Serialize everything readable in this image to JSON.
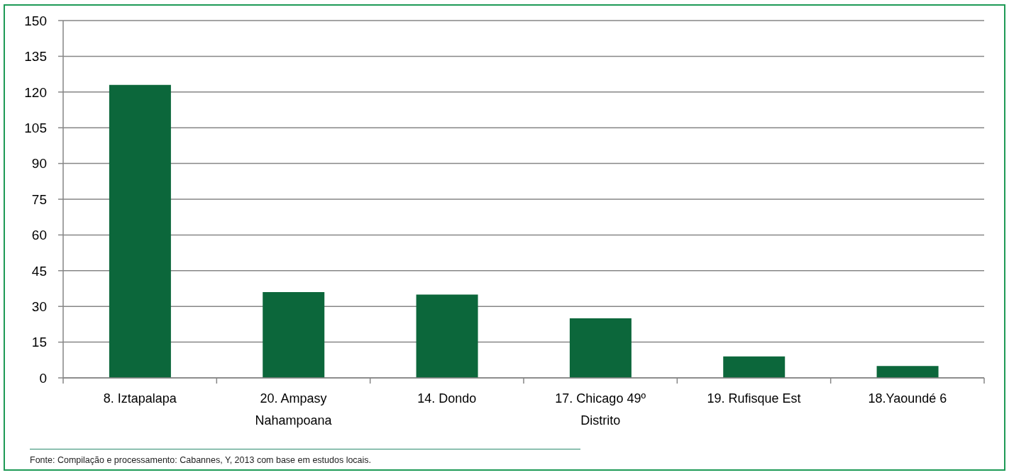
{
  "chart_data": {
    "type": "bar",
    "categories": [
      "8. Iztapalapa",
      "20. Ampasy Nahampoana",
      "14. Dondo",
      "17. Chicago 49º Distrito",
      "19. Rufisque Est",
      "18.Yaoundé 6"
    ],
    "values": [
      123,
      36,
      35,
      25,
      9,
      5
    ],
    "color": "#0c673b",
    "ylim": [
      0,
      150
    ],
    "yticks": [
      0,
      15,
      30,
      45,
      60,
      75,
      90,
      105,
      120,
      135,
      150
    ],
    "grid": "y",
    "annotations": [
      "Fonte: Compilação e processamento: Cabannes, Y, 2013 com base em estudos locais."
    ]
  }
}
